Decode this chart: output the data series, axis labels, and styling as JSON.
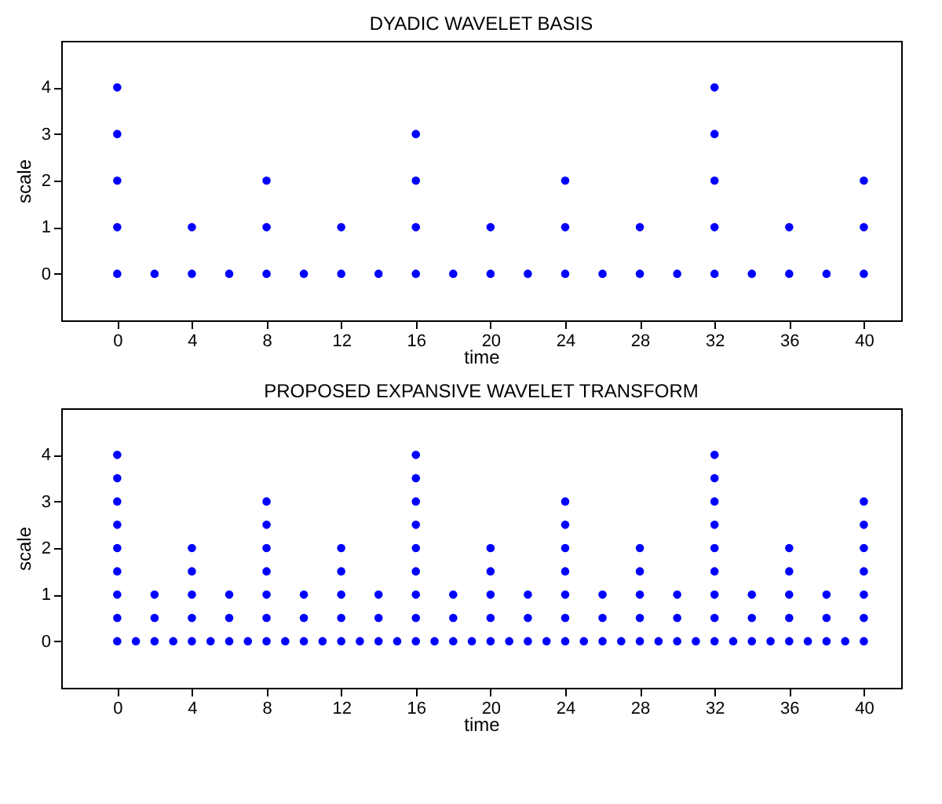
{
  "chart_data": [
    {
      "type": "scatter",
      "title": "DYADIC WAVELET BASIS",
      "xlabel": "time",
      "ylabel": "scale",
      "xlim": [
        -3,
        42
      ],
      "ylim": [
        -1,
        5
      ],
      "xticks": [
        0,
        4,
        8,
        12,
        16,
        20,
        24,
        28,
        32,
        36,
        40
      ],
      "yticks": [
        0,
        1,
        2,
        3,
        4
      ],
      "grid": false,
      "marker": "circle",
      "series": [
        {
          "color": "#0000ff",
          "x": [
            0,
            0,
            0,
            0,
            0,
            2,
            4,
            4,
            6,
            8,
            8,
            8,
            10,
            12,
            12,
            14,
            16,
            16,
            16,
            16,
            18,
            20,
            20,
            22,
            24,
            24,
            24,
            26,
            28,
            28,
            30,
            32,
            32,
            32,
            32,
            32,
            34,
            36,
            36,
            38,
            40,
            40,
            40
          ],
          "values": [
            0,
            1,
            2,
            3,
            4,
            0,
            0,
            1,
            0,
            0,
            1,
            2,
            0,
            0,
            1,
            0,
            0,
            1,
            2,
            3,
            0,
            0,
            1,
            0,
            0,
            1,
            2,
            0,
            0,
            1,
            0,
            0,
            1,
            2,
            3,
            4,
            0,
            0,
            1,
            0,
            0,
            1,
            2
          ]
        }
      ]
    },
    {
      "type": "scatter",
      "title": "PROPOSED EXPANSIVE WAVELET TRANSFORM",
      "xlabel": "time",
      "ylabel": "scale",
      "xlim": [
        -3,
        42
      ],
      "ylim": [
        -1,
        5
      ],
      "xticks": [
        0,
        4,
        8,
        12,
        16,
        20,
        24,
        28,
        32,
        36,
        40
      ],
      "yticks": [
        0,
        1,
        2,
        3,
        4
      ],
      "grid": false,
      "marker": "circle",
      "series": [
        {
          "color": "#0000ff",
          "x": [
            0,
            0,
            0,
            0,
            0,
            0,
            0,
            0,
            0,
            1,
            2,
            2,
            2,
            3,
            4,
            4,
            4,
            4,
            4,
            5,
            6,
            6,
            6,
            7,
            8,
            8,
            8,
            8,
            8,
            8,
            8,
            9,
            10,
            10,
            10,
            11,
            12,
            12,
            12,
            12,
            12,
            13,
            14,
            14,
            14,
            15,
            16,
            16,
            16,
            16,
            16,
            16,
            16,
            16,
            16,
            17,
            18,
            18,
            18,
            19,
            20,
            20,
            20,
            20,
            20,
            21,
            22,
            22,
            22,
            23,
            24,
            24,
            24,
            24,
            24,
            24,
            24,
            25,
            26,
            26,
            26,
            27,
            28,
            28,
            28,
            28,
            28,
            29,
            30,
            30,
            30,
            31,
            32,
            32,
            32,
            32,
            32,
            32,
            32,
            32,
            32,
            33,
            34,
            34,
            34,
            35,
            36,
            36,
            36,
            36,
            36,
            37,
            38,
            38,
            38,
            39,
            40,
            40,
            40,
            40,
            40,
            40,
            40
          ],
          "values": [
            0,
            0.5,
            1,
            1.5,
            2,
            2.5,
            3,
            3.5,
            4,
            0,
            0,
            0.5,
            1,
            0,
            0,
            0.5,
            1,
            1.5,
            2,
            0,
            0,
            0.5,
            1,
            0,
            0,
            0.5,
            1,
            1.5,
            2,
            2.5,
            3,
            0,
            0,
            0.5,
            1,
            0,
            0,
            0.5,
            1,
            1.5,
            2,
            0,
            0,
            0.5,
            1,
            0,
            0,
            0.5,
            1,
            1.5,
            2,
            2.5,
            3,
            3.5,
            4,
            0,
            0,
            0.5,
            1,
            0,
            0,
            0.5,
            1,
            1.5,
            2,
            0,
            0,
            0.5,
            1,
            0,
            0,
            0.5,
            1,
            1.5,
            2,
            2.5,
            3,
            0,
            0,
            0.5,
            1,
            0,
            0,
            0.5,
            1,
            1.5,
            2,
            0,
            0,
            0.5,
            1,
            0,
            0,
            0.5,
            1,
            1.5,
            2,
            2.5,
            3,
            3.5,
            4,
            0,
            0,
            0.5,
            1,
            0,
            0,
            0.5,
            1,
            1.5,
            2,
            0,
            0,
            0.5,
            1,
            0,
            0,
            0.5,
            1,
            1.5,
            2,
            2.5,
            3
          ]
        }
      ]
    }
  ]
}
